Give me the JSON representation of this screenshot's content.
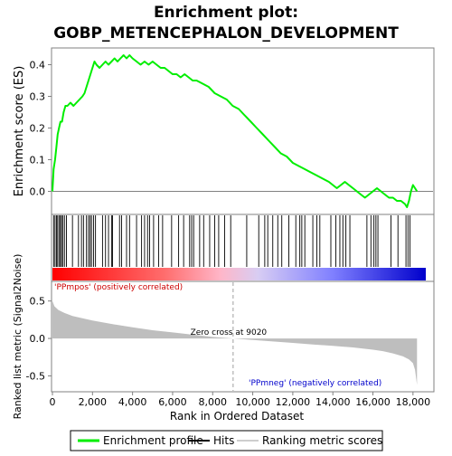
{
  "chart_data": {
    "type": "line",
    "title_line1": "Enrichment plot:",
    "title_line2": "GOBP_METENCEPHALON_DEVELOPMENT",
    "xlabel": "Rank in Ordered Dataset",
    "xlim": [
      0,
      19000
    ],
    "x_ticks": [
      0,
      2000,
      4000,
      6000,
      8000,
      10000,
      12000,
      14000,
      16000,
      18000
    ],
    "x_tick_labels": [
      "0",
      "2,000",
      "4,000",
      "6,000",
      "8,000",
      "10,000",
      "12,000",
      "14,000",
      "16,000",
      "18,000"
    ],
    "es_panel": {
      "ylabel": "Enrichment score (ES)",
      "ylim": [
        -0.07,
        0.45
      ],
      "y_ticks": [
        0.0,
        0.1,
        0.2,
        0.3,
        0.4
      ],
      "y_tick_labels": [
        "0.0",
        "0.1",
        "0.2",
        "0.3",
        "0.4"
      ],
      "series": [
        {
          "name": "Enrichment profile",
          "color": "#00ee00",
          "x": [
            0,
            60,
            130,
            200,
            260,
            330,
            400,
            480,
            560,
            650,
            750,
            900,
            1050,
            1200,
            1350,
            1500,
            1600,
            1700,
            1800,
            1900,
            2000,
            2100,
            2200,
            2350,
            2500,
            2650,
            2800,
            2950,
            3100,
            3250,
            3400,
            3550,
            3700,
            3850,
            4000,
            4200,
            4400,
            4600,
            4800,
            5000,
            5200,
            5400,
            5600,
            5800,
            6000,
            6200,
            6400,
            6600,
            6800,
            7000,
            7200,
            7500,
            7800,
            8100,
            8400,
            8700,
            9000,
            9300,
            9600,
            9900,
            10200,
            10500,
            10800,
            11100,
            11400,
            11700,
            12000,
            12300,
            12600,
            12900,
            13200,
            13500,
            13800,
            14000,
            14200,
            14400,
            14600,
            14800,
            15000,
            15200,
            15400,
            15600,
            15800,
            16000,
            16200,
            16400,
            16600,
            16800,
            17000,
            17200,
            17400,
            17600,
            17700,
            17800,
            17900,
            18000,
            18100,
            18200
          ],
          "y": [
            0.0,
            0.07,
            0.1,
            0.14,
            0.18,
            0.2,
            0.22,
            0.22,
            0.25,
            0.27,
            0.27,
            0.28,
            0.27,
            0.28,
            0.29,
            0.3,
            0.31,
            0.33,
            0.35,
            0.37,
            0.39,
            0.41,
            0.4,
            0.39,
            0.4,
            0.41,
            0.4,
            0.41,
            0.42,
            0.41,
            0.42,
            0.43,
            0.42,
            0.43,
            0.42,
            0.41,
            0.4,
            0.41,
            0.4,
            0.41,
            0.4,
            0.39,
            0.39,
            0.38,
            0.37,
            0.37,
            0.36,
            0.37,
            0.36,
            0.35,
            0.35,
            0.34,
            0.33,
            0.31,
            0.3,
            0.29,
            0.27,
            0.26,
            0.24,
            0.22,
            0.2,
            0.18,
            0.16,
            0.14,
            0.12,
            0.11,
            0.09,
            0.08,
            0.07,
            0.06,
            0.05,
            0.04,
            0.03,
            0.02,
            0.01,
            0.02,
            0.03,
            0.02,
            0.01,
            0.0,
            -0.01,
            -0.02,
            -0.01,
            0.0,
            0.01,
            0.0,
            -0.01,
            -0.02,
            -0.02,
            -0.03,
            -0.03,
            -0.04,
            -0.05,
            -0.03,
            0.0,
            0.02,
            0.01,
            0.0
          ]
        }
      ]
    },
    "hits": {
      "name": "Hits",
      "ranks": [
        60,
        130,
        200,
        260,
        330,
        400,
        450,
        520,
        600,
        700,
        1000,
        1300,
        1450,
        1550,
        1700,
        1800,
        1880,
        1950,
        2050,
        2150,
        2500,
        2650,
        2800,
        2950,
        3000,
        3350,
        3450,
        3700,
        3850,
        4200,
        4450,
        4600,
        4750,
        4850,
        5050,
        5300,
        5500,
        5950,
        6300,
        6550,
        6850,
        6950,
        7050,
        7350,
        7550,
        7850,
        8100,
        8300,
        8600,
        8900,
        9700,
        10300,
        10600,
        10750,
        11000,
        11250,
        11450,
        11800,
        12150,
        12350,
        12450,
        12600,
        13000,
        13200,
        13350,
        13900,
        14150,
        14350,
        14500,
        14650,
        14850,
        15700,
        15900,
        16050,
        16150,
        16250,
        16900,
        17250,
        17650,
        17750,
        17850
      ]
    },
    "ranked_metric_panel": {
      "ylabel": "Ranked list metric (Signal2Noise)",
      "ylim": [
        -0.7,
        0.75
      ],
      "y_ticks": [
        -0.5,
        0.0,
        0.5
      ],
      "y_tick_labels": [
        "-0.5",
        "0.0",
        "0.5"
      ],
      "fill_color": "#bebebe",
      "x": [
        0,
        100,
        300,
        600,
        1000,
        1500,
        2000,
        3000,
        4000,
        5000,
        6000,
        7000,
        8000,
        9020,
        10000,
        11000,
        12000,
        13000,
        14000,
        15000,
        16000,
        16500,
        17000,
        17500,
        17800,
        18000,
        18100,
        18200
      ],
      "y": [
        0.5,
        0.43,
        0.38,
        0.34,
        0.3,
        0.27,
        0.24,
        0.19,
        0.15,
        0.11,
        0.08,
        0.05,
        0.02,
        0.0,
        -0.02,
        -0.04,
        -0.06,
        -0.08,
        -0.1,
        -0.12,
        -0.15,
        -0.17,
        -0.2,
        -0.24,
        -0.28,
        -0.33,
        -0.42,
        -0.62
      ],
      "zero_cross_rank": 9020,
      "zero_cross_label": "Zero cross at 9020",
      "pos_label": "'PPmpos' (positively correlated)",
      "neg_label": "'PPmneg' (negatively correlated)",
      "pos_label_color": "#cc0000",
      "neg_label_color": "#0000cc"
    },
    "color_bar": {
      "stops": [
        "#ff0000",
        "#ff6d6d",
        "#ffb6c8",
        "#d8cdf3",
        "#8080ff",
        "#0000cc"
      ]
    },
    "legend": {
      "placement": "bottom",
      "entries": [
        {
          "label": "Enrichment profile",
          "color": "#00ee00"
        },
        {
          "label": "Hits",
          "color": "#000000"
        },
        {
          "label": "Ranking metric scores",
          "color": "#bebebe"
        }
      ]
    },
    "grid": false
  }
}
